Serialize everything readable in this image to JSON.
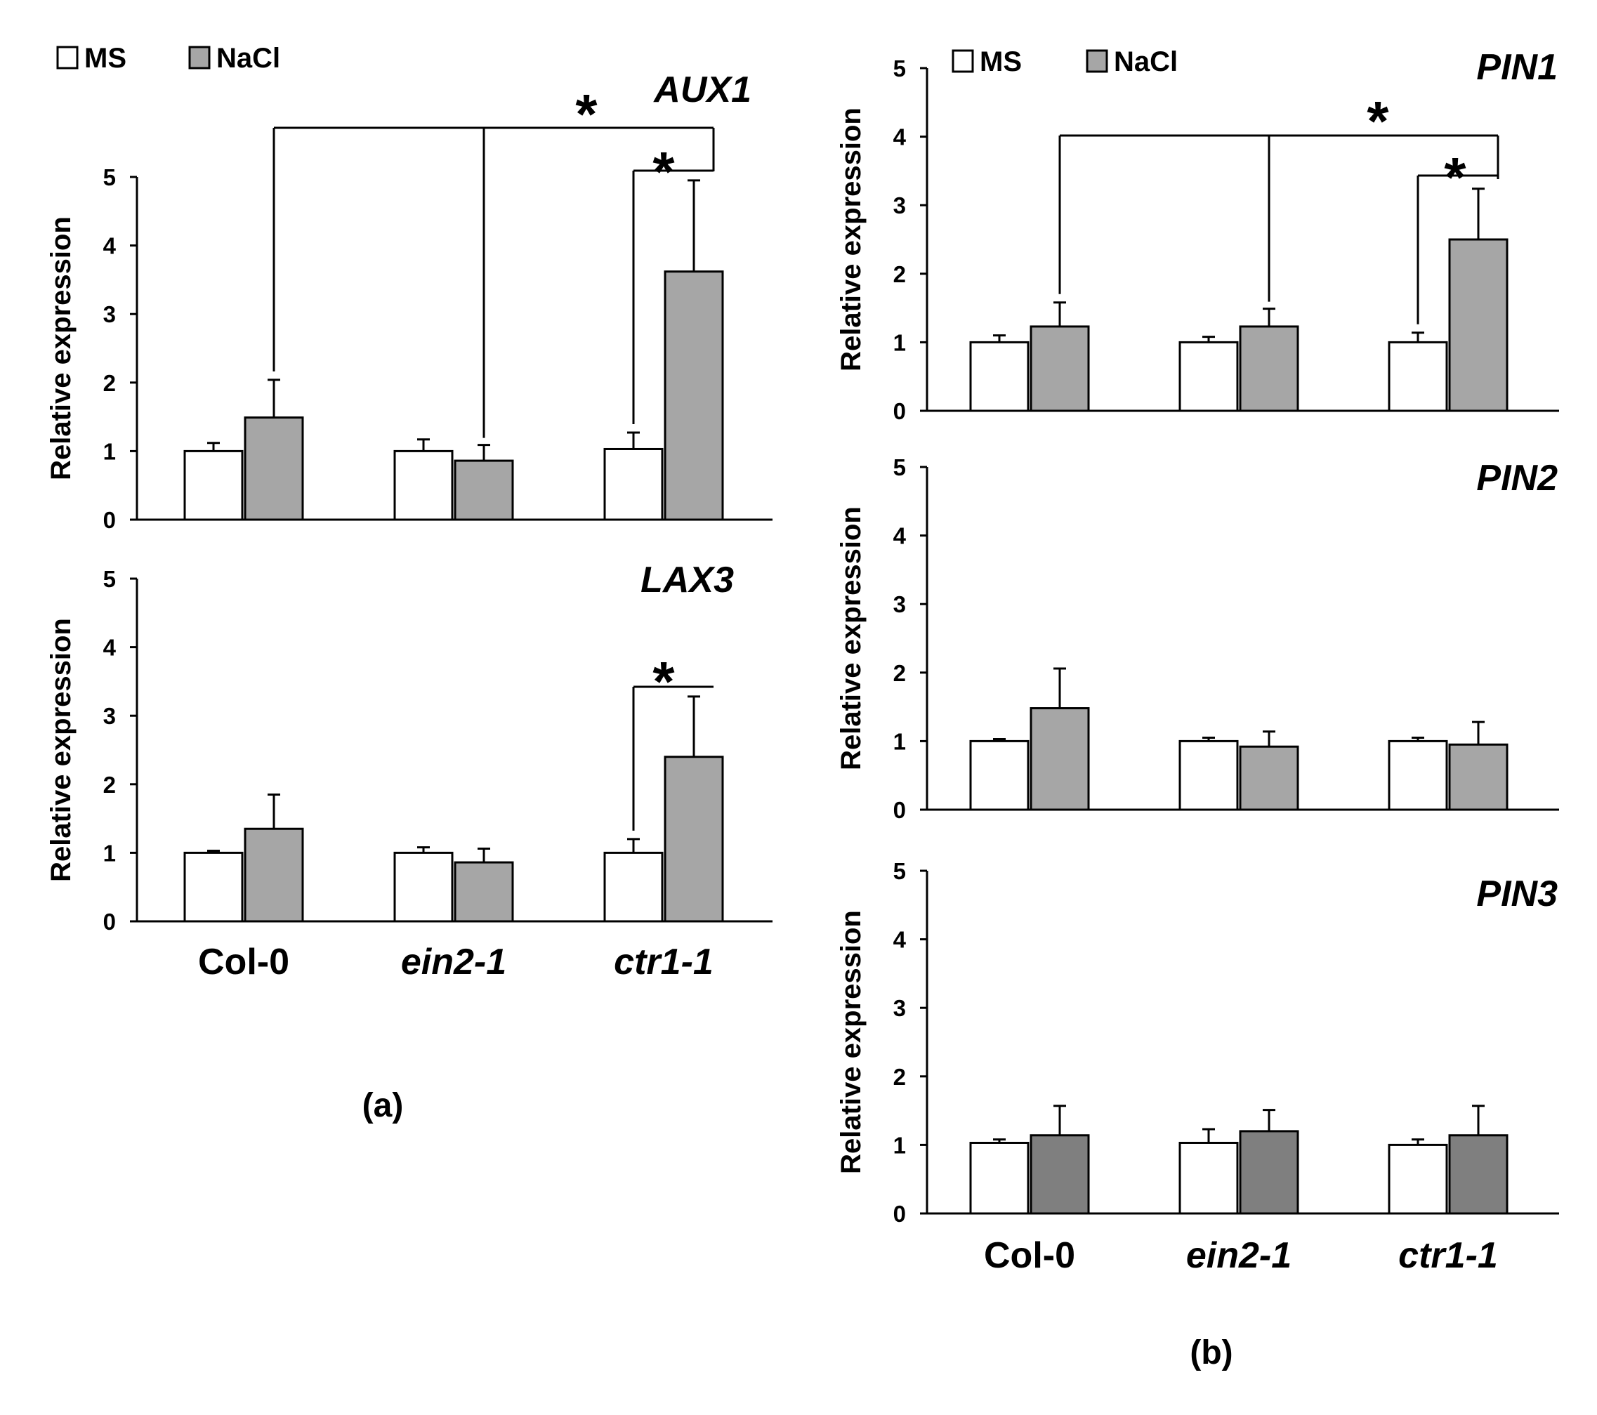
{
  "legend": {
    "items": [
      {
        "label": "MS",
        "color": "#ffffff"
      },
      {
        "label": "NaCl",
        "color": "#a6a6a6"
      }
    ]
  },
  "panel_labels": {
    "a": "(a)",
    "b": "(b)"
  },
  "chart_data": [
    {
      "id": "aux1",
      "type": "bar",
      "title": "AUX1",
      "ylabel": "Relative expression",
      "ylim": [
        0,
        5
      ],
      "yticks": [
        0,
        1,
        2,
        3,
        4,
        5
      ],
      "categories": [
        "Col-0",
        "ein2-1",
        "ctr1-1"
      ],
      "series": [
        {
          "name": "MS",
          "color": "#ffffff",
          "values": [
            1.0,
            1.0,
            1.03
          ],
          "errors": [
            0.12,
            0.17,
            0.24
          ]
        },
        {
          "name": "NaCl",
          "color": "#a6a6a6",
          "values": [
            1.49,
            0.86,
            3.62
          ],
          "errors": [
            0.55,
            0.23,
            1.33
          ]
        }
      ],
      "significance": [
        {
          "label": "*",
          "type": "cross",
          "from_category": 0,
          "via_category": 1,
          "to_category": 2
        },
        {
          "label": "*",
          "type": "within",
          "category": 2
        }
      ]
    },
    {
      "id": "lax3",
      "type": "bar",
      "title": "LAX3",
      "ylabel": "Relative expression",
      "ylim": [
        0,
        5
      ],
      "yticks": [
        0,
        1,
        2,
        3,
        4,
        5
      ],
      "categories": [
        "Col-0",
        "ein2-1",
        "ctr1-1"
      ],
      "series": [
        {
          "name": "MS",
          "color": "#ffffff",
          "values": [
            1.0,
            1.0,
            1.0
          ],
          "errors": [
            0.03,
            0.08,
            0.2
          ]
        },
        {
          "name": "NaCl",
          "color": "#a6a6a6",
          "values": [
            1.35,
            0.86,
            2.4
          ],
          "errors": [
            0.5,
            0.2,
            0.88
          ]
        }
      ],
      "significance": [
        {
          "label": "*",
          "type": "within",
          "category": 2
        }
      ]
    },
    {
      "id": "pin1",
      "type": "bar",
      "title": "PIN1",
      "ylabel": "Relative expression",
      "ylim": [
        0,
        5
      ],
      "yticks": [
        0,
        1,
        2,
        3,
        4,
        5
      ],
      "categories": [
        "Col-0",
        "ein2-1",
        "ctr1-1"
      ],
      "series": [
        {
          "name": "MS",
          "color": "#ffffff",
          "values": [
            1.0,
            1.0,
            1.0
          ],
          "errors": [
            0.1,
            0.08,
            0.14
          ]
        },
        {
          "name": "NaCl",
          "color": "#a6a6a6",
          "values": [
            1.23,
            1.23,
            2.5
          ],
          "errors": [
            0.35,
            0.26,
            0.74
          ]
        }
      ],
      "significance": [
        {
          "label": "*",
          "type": "cross",
          "from_category": 0,
          "via_category": 1,
          "to_category": 2
        },
        {
          "label": "*",
          "type": "within",
          "category": 2
        }
      ]
    },
    {
      "id": "pin2",
      "type": "bar",
      "title": "PIN2",
      "ylabel": "Relative expression",
      "ylim": [
        0,
        5
      ],
      "yticks": [
        0,
        1,
        2,
        3,
        4,
        5
      ],
      "categories": [
        "Col-0",
        "ein2-1",
        "ctr1-1"
      ],
      "series": [
        {
          "name": "MS",
          "color": "#ffffff",
          "values": [
            1.0,
            1.0,
            1.0
          ],
          "errors": [
            0.03,
            0.05,
            0.05
          ]
        },
        {
          "name": "NaCl",
          "color": "#a6a6a6",
          "values": [
            1.48,
            0.92,
            0.95
          ],
          "errors": [
            0.58,
            0.22,
            0.33
          ]
        }
      ],
      "significance": []
    },
    {
      "id": "pin3",
      "type": "bar",
      "title": "PIN3",
      "ylabel": "Relative expression",
      "ylim": [
        0,
        5
      ],
      "yticks": [
        0,
        1,
        2,
        3,
        4,
        5
      ],
      "categories": [
        "Col-0",
        "ein2-1",
        "ctr1-1"
      ],
      "series": [
        {
          "name": "MS",
          "color": "#ffffff",
          "values": [
            1.03,
            1.03,
            1.0
          ],
          "errors": [
            0.05,
            0.2,
            0.08
          ]
        },
        {
          "name": "NaCl",
          "color": "#7f7f7f",
          "values": [
            1.14,
            1.2,
            1.14
          ],
          "errors": [
            0.43,
            0.31,
            0.43
          ]
        }
      ],
      "significance": []
    }
  ]
}
